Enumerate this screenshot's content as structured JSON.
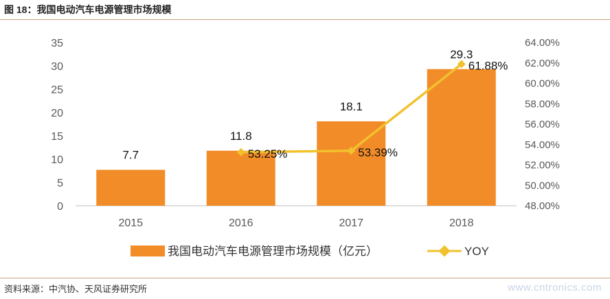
{
  "header": {
    "title": "图 18：我国电动汽车电源管理市场规模"
  },
  "footer": {
    "source": "资料来源：中汽协、天风证券研究所",
    "watermark": "www.cntronics.com"
  },
  "chart_data": {
    "type": "bar",
    "categories": [
      "2015",
      "2016",
      "2017",
      "2018"
    ],
    "series": [
      {
        "name": "我国电动汽车电源管理市场规模（亿元）",
        "type": "bar",
        "axis": "left",
        "color": "#F28C28",
        "values": [
          7.7,
          11.8,
          18.1,
          29.3
        ],
        "labels": [
          "7.7",
          "11.8",
          "18.1",
          "29.3"
        ]
      },
      {
        "name": "YOY",
        "type": "line",
        "axis": "right",
        "color": "#F2C12E",
        "values": [
          null,
          53.25,
          53.39,
          61.88
        ],
        "labels": [
          "",
          "53.25%",
          "53.39%",
          "61.88%"
        ]
      }
    ],
    "y_left": {
      "min": 0,
      "max": 35,
      "ticks": [
        "0",
        "5",
        "10",
        "15",
        "20",
        "25",
        "30",
        "35"
      ]
    },
    "y_right": {
      "min": 48,
      "max": 64,
      "ticks": [
        "48.00%",
        "50.00%",
        "52.00%",
        "54.00%",
        "56.00%",
        "58.00%",
        "60.00%",
        "62.00%",
        "64.00%"
      ]
    },
    "grid": false,
    "legend_position": "bottom"
  }
}
